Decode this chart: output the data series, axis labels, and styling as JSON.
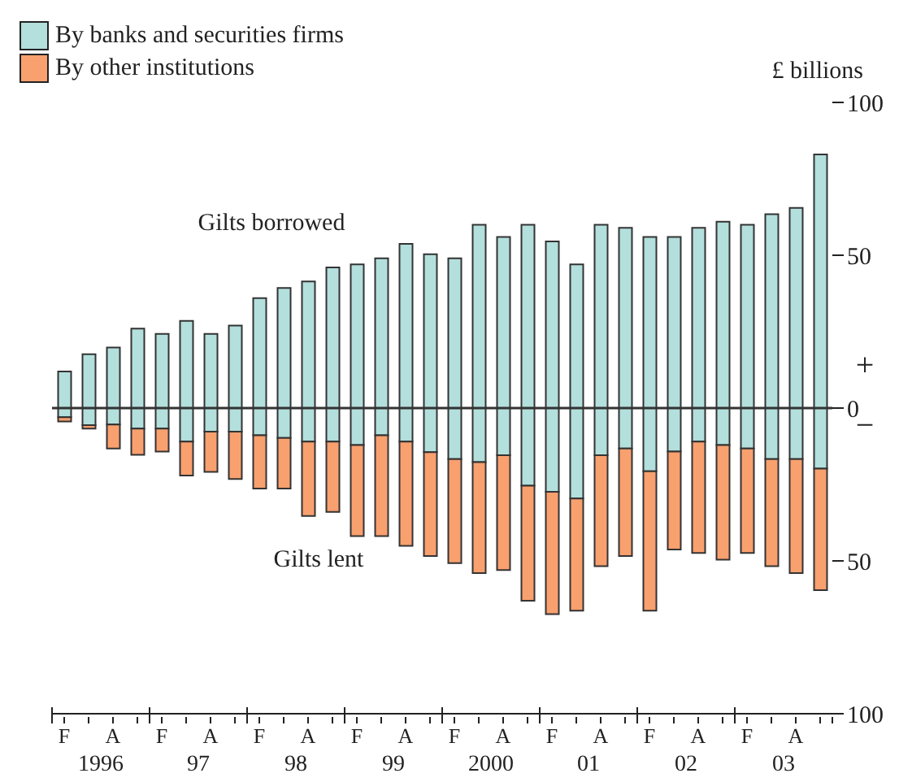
{
  "chart_data": {
    "type": "bar",
    "stacked": true,
    "ylabel": "£ billions",
    "legend": "top left",
    "categories": [
      "F",
      null,
      "A",
      null,
      "F",
      null,
      "A",
      null,
      "F",
      null,
      "A",
      null,
      "F",
      null,
      "A",
      null,
      "F",
      null,
      "A",
      null,
      "F",
      null,
      "A",
      null,
      "F",
      null,
      "A",
      null,
      "F",
      null,
      "A",
      null
    ],
    "series": [
      {
        "name": "By banks and securities firms",
        "color": "#b3dfdc",
        "values": [
          12,
          17.6,
          19.8,
          26,
          24.3,
          28.5,
          24.3,
          27,
          36,
          39.3,
          41.4,
          46,
          47,
          49,
          53.7,
          50.3,
          49,
          60,
          56,
          60,
          54.5,
          47,
          60,
          59,
          56,
          56,
          59,
          61,
          60,
          63.4,
          65.5,
          83
        ]
      },
      {
        "color": "#b3dfdc",
        "values": [
          -3,
          -5.6,
          -5.4,
          -6.7,
          -6.7,
          -11,
          -7.7,
          -7.7,
          -8.9,
          -9.8,
          -11,
          -11,
          -12.1,
          -8.9,
          -11,
          -14.4,
          -16.7,
          -17.7,
          -15.4,
          -25.4,
          -27.4,
          -29.6,
          -15.4,
          -13.2,
          -20.7,
          -14.2,
          -11,
          -12.1,
          -13.2,
          -16.7,
          -16.7,
          -19.8
        ]
      },
      {
        "name": "By other institutions",
        "color": "#f9a06f",
        "values": [
          -1.4,
          -1.1,
          -7.8,
          -8.6,
          -7.5,
          -11.1,
          -13.2,
          -15.5,
          -17.4,
          -16.5,
          -24.3,
          -23,
          -29.8,
          -33,
          -34.1,
          -34,
          -34,
          -36.3,
          -37.6,
          -37.6,
          -40,
          -36.7,
          -36.3,
          -35.2,
          -45.6,
          -32.1,
          -36.4,
          -37.5,
          -34.2,
          -35,
          -37.3,
          -39.8
        ]
      }
    ],
    "ylim": [
      -100,
      100
    ],
    "yticks": [
      {
        "value": -100,
        "label": "100"
      },
      {
        "value": -50,
        "label": "50"
      },
      0,
      50,
      100
    ],
    "annotations": [
      "Gilts borrowed",
      "Gilts lent",
      "+",
      "−",
      "1996",
      "97",
      "98",
      "99",
      "2000",
      "01",
      "02",
      "03"
    ]
  }
}
